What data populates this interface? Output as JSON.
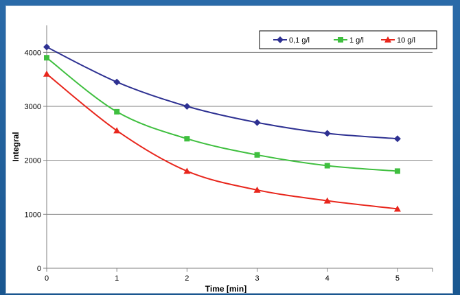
{
  "chart_data": {
    "type": "line",
    "title": "",
    "xlabel": "Time [min]",
    "ylabel": "Integral",
    "x": [
      0,
      1,
      2,
      3,
      4,
      5
    ],
    "xlim": [
      0,
      5.5
    ],
    "ylim": [
      0,
      4500
    ],
    "x_ticks": [
      "0",
      "1",
      "2",
      "3",
      "4",
      "5"
    ],
    "y_ticks": [
      "0",
      "1000",
      "2000",
      "3000",
      "4000"
    ],
    "y_tick_values": [
      0,
      1000,
      2000,
      3000,
      4000
    ],
    "grid": "horizontal",
    "legend_position": "top-right",
    "series": [
      {
        "name": "0,1 g/l",
        "color": "#2e3192",
        "marker": "diamond",
        "values": [
          4100,
          3450,
          3000,
          2700,
          2500,
          2400
        ]
      },
      {
        "name": "1 g/l",
        "color": "#3fbf3f",
        "marker": "square",
        "values": [
          3900,
          2900,
          2400,
          2100,
          1900,
          1800
        ]
      },
      {
        "name": "10 g/l",
        "color": "#e8261c",
        "marker": "triangle",
        "values": [
          3600,
          2550,
          1800,
          1450,
          1250,
          1100
        ]
      }
    ]
  }
}
